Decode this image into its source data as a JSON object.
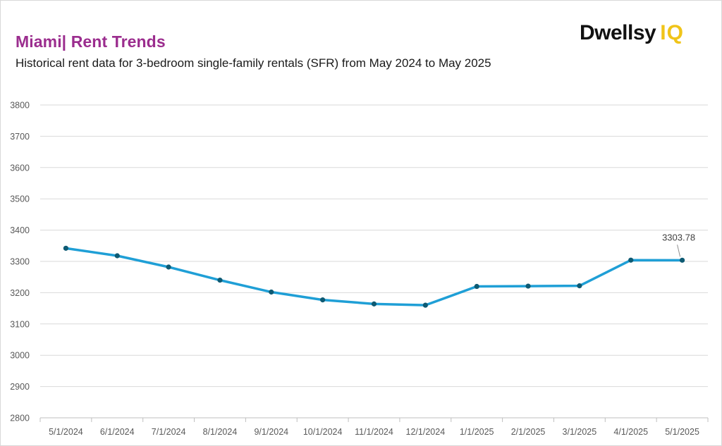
{
  "header": {
    "title": "Miami| Rent Trends",
    "subtitle": "Historical rent data for 3-bedroom single-family rentals (SFR) from May 2024 to May 2025"
  },
  "logo": {
    "brand": "Dwellsy",
    "suffix": "IQ",
    "brand_color": "#111111",
    "suffix_color": "#f0c419"
  },
  "chart_data": {
    "type": "line",
    "title": "Miami| Rent Trends",
    "subtitle": "Historical rent data for 3-bedroom single-family rentals (SFR) from May 2024 to May 2025",
    "xlabel": "",
    "ylabel": "",
    "categories": [
      "5/1/2024",
      "6/1/2024",
      "7/1/2024",
      "8/1/2024",
      "9/1/2024",
      "10/1/2024",
      "11/1/2024",
      "12/1/2024",
      "1/1/2025",
      "2/1/2025",
      "3/1/2025",
      "4/1/2025",
      "5/1/2025"
    ],
    "series": [
      {
        "values": [
          3342,
          3318,
          3282,
          3240,
          3202,
          3177,
          3164,
          3160,
          3220,
          3221,
          3222,
          3304,
          3303.78
        ],
        "color": "#1f9fd6",
        "marker_color": "#0e5a73"
      }
    ],
    "ylim": [
      2800,
      3800
    ],
    "yticks": [
      2800,
      2900,
      3000,
      3100,
      3200,
      3300,
      3400,
      3500,
      3600,
      3700,
      3800
    ],
    "grid": true,
    "legend": "none",
    "annotations": [
      {
        "category": "5/1/2025",
        "text": "3303.78"
      }
    ]
  }
}
